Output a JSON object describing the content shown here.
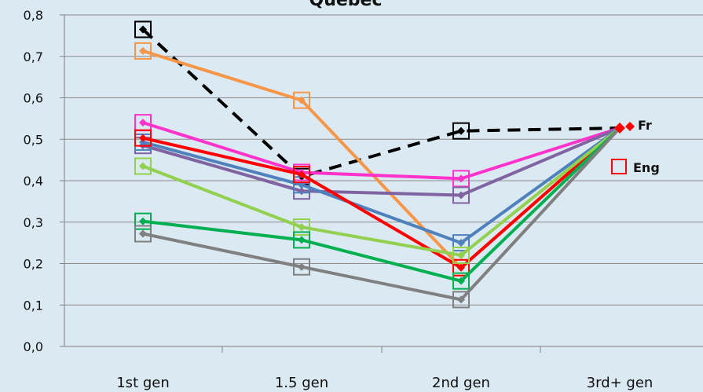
{
  "chart_data": {
    "type": "line",
    "title": "Quebec",
    "categories": [
      "1st gen",
      "1.5 gen",
      "2nd gen",
      "3rd+ gen"
    ],
    "y_tick_labels": [
      "0,0",
      "0,1",
      "0,2",
      "0,3",
      "0,4",
      "0,5",
      "0,6",
      "0,7",
      "0,8"
    ],
    "ylim": [
      0,
      0.8
    ],
    "grid": true,
    "legend": [
      {
        "label": "Fr",
        "marker": "diamond",
        "color": "#ff0000"
      },
      {
        "label": "Eng",
        "marker": "square",
        "color": "#ff0000"
      }
    ],
    "series": [
      {
        "color": "#000000",
        "dashed": true,
        "values": [
          0.765,
          0.41,
          0.52,
          0.527
        ]
      },
      {
        "color": "#f79646",
        "dashed": false,
        "values": [
          0.713,
          0.594,
          0.19,
          0.527
        ]
      },
      {
        "color": "#ff33cc",
        "dashed": false,
        "values": [
          0.54,
          0.42,
          0.405,
          0.527
        ]
      },
      {
        "color": "#8064a2",
        "dashed": false,
        "values": [
          0.485,
          0.375,
          0.365,
          0.527
        ]
      },
      {
        "color": "#4f81bd",
        "dashed": false,
        "values": [
          0.493,
          0.39,
          0.25,
          0.527
        ]
      },
      {
        "color": "#ff0000",
        "dashed": false,
        "values": [
          0.503,
          0.415,
          0.19,
          0.527
        ]
      },
      {
        "color": "#92d050",
        "dashed": false,
        "values": [
          0.435,
          0.288,
          0.22,
          0.527
        ]
      },
      {
        "color": "#00b050",
        "dashed": false,
        "values": [
          0.302,
          0.257,
          0.158,
          0.527
        ]
      },
      {
        "color": "#808080",
        "dashed": false,
        "values": [
          0.272,
          0.192,
          0.113,
          0.527
        ]
      }
    ]
  }
}
